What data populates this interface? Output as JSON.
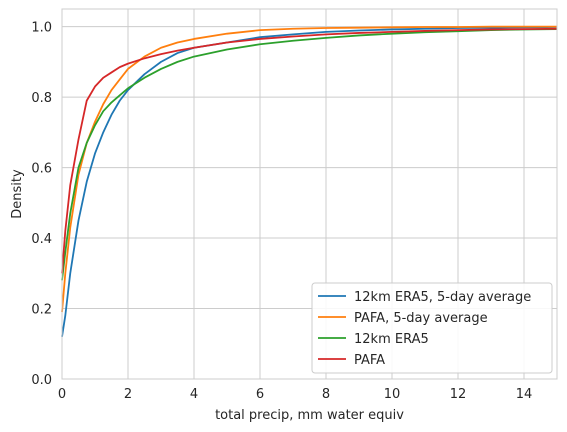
{
  "chart_data": {
    "type": "line",
    "xlabel": "total precip, mm water equiv",
    "ylabel": "Density",
    "xlim": [
      0,
      15
    ],
    "ylim": [
      0,
      1.05
    ],
    "xticks": [
      0,
      2,
      4,
      6,
      8,
      10,
      12,
      14
    ],
    "yticks": [
      0.0,
      0.2,
      0.4,
      0.6,
      0.8,
      1.0
    ],
    "grid": true,
    "legend_position": "lower-right",
    "series": [
      {
        "name": "12km ERA5, 5-day average",
        "color": "#1f77b4",
        "x": [
          0,
          0.1,
          0.25,
          0.5,
          0.75,
          1,
          1.25,
          1.5,
          1.75,
          2,
          2.5,
          3,
          3.5,
          4,
          5,
          6,
          7,
          8,
          9,
          10,
          11,
          12,
          13,
          14,
          15
        ],
        "y": [
          0.12,
          0.18,
          0.3,
          0.45,
          0.56,
          0.64,
          0.7,
          0.75,
          0.79,
          0.82,
          0.865,
          0.9,
          0.925,
          0.94,
          0.955,
          0.97,
          0.978,
          0.985,
          0.989,
          0.992,
          0.994,
          0.996,
          0.997,
          0.998,
          0.999
        ]
      },
      {
        "name": "PAFA, 5-day average",
        "color": "#ff7f0e",
        "x": [
          0,
          0.1,
          0.25,
          0.5,
          0.75,
          1,
          1.25,
          1.5,
          1.75,
          2,
          2.5,
          3,
          3.5,
          4,
          5,
          6,
          7,
          8,
          9,
          10,
          11,
          12,
          13,
          14,
          15
        ],
        "y": [
          0.19,
          0.3,
          0.43,
          0.58,
          0.67,
          0.73,
          0.78,
          0.82,
          0.85,
          0.88,
          0.915,
          0.94,
          0.955,
          0.965,
          0.98,
          0.99,
          0.994,
          0.996,
          0.997,
          0.998,
          0.999,
          0.999,
          1.0,
          1.0,
          1.0
        ]
      },
      {
        "name": "12km ERA5",
        "color": "#2ca02c",
        "x": [
          0,
          0.1,
          0.25,
          0.5,
          0.75,
          1,
          1.25,
          1.5,
          1.75,
          2,
          2.5,
          3,
          3.5,
          4,
          5,
          6,
          7,
          8,
          9,
          10,
          11,
          12,
          13,
          14,
          15
        ],
        "y": [
          0.28,
          0.36,
          0.47,
          0.6,
          0.67,
          0.72,
          0.76,
          0.785,
          0.805,
          0.825,
          0.855,
          0.88,
          0.9,
          0.915,
          0.935,
          0.95,
          0.96,
          0.968,
          0.975,
          0.98,
          0.984,
          0.987,
          0.99,
          0.992,
          0.993
        ]
      },
      {
        "name": "PAFA",
        "color": "#d62728",
        "x": [
          0,
          0.1,
          0.25,
          0.5,
          0.75,
          1,
          1.25,
          1.5,
          1.75,
          2,
          2.5,
          3,
          3.5,
          4,
          5,
          6,
          7,
          8,
          9,
          10,
          11,
          12,
          13,
          14,
          15
        ],
        "y": [
          0.3,
          0.42,
          0.55,
          0.68,
          0.79,
          0.83,
          0.855,
          0.87,
          0.885,
          0.895,
          0.91,
          0.922,
          0.932,
          0.94,
          0.955,
          0.965,
          0.972,
          0.978,
          0.982,
          0.985,
          0.988,
          0.99,
          0.992,
          0.993,
          0.994
        ]
      }
    ]
  }
}
